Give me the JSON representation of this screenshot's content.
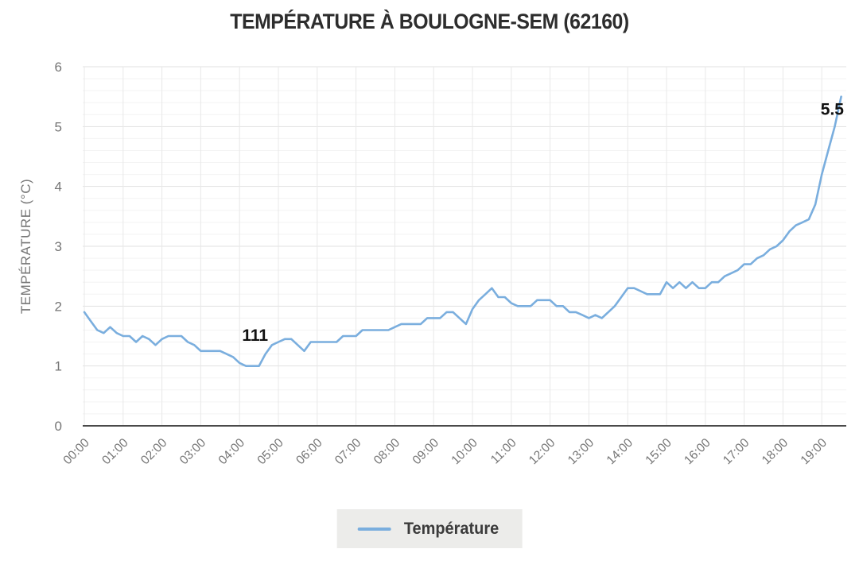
{
  "header": {
    "title": "TEMPÉRATURE À BOULOGNE-SEM (62160)"
  },
  "chart_data": {
    "type": "line",
    "title": "TEMPÉRATURE À BOULOGNE-SEM (62160)",
    "xlabel": "",
    "ylabel": "TEMPÉRATURE (°C)",
    "ylim": [
      0,
      6
    ],
    "grid": {
      "y_minor_step": 0.2,
      "y_major_step": 1,
      "x_step_hours": 1,
      "visible": true
    },
    "y_ticks": [
      "0",
      "1",
      "2",
      "3",
      "4",
      "5",
      "6"
    ],
    "x_ticks": [
      "00:00",
      "01:00",
      "02:00",
      "03:00",
      "04:00",
      "05:00",
      "06:00",
      "07:00",
      "08:00",
      "09:00",
      "10:00",
      "11:00",
      "12:00",
      "13:00",
      "14:00",
      "15:00",
      "16:00",
      "17:00",
      "18:00",
      "19:00"
    ],
    "interval_minutes": 10,
    "start_time": "00:00",
    "end_time": "19:30",
    "legend_position": "bottom",
    "legend": {
      "entries": [
        {
          "label": "Température",
          "color": "#7aaede"
        }
      ]
    },
    "series": [
      {
        "name": "Température",
        "color": "#7aaede",
        "values": [
          1.9,
          1.75,
          1.6,
          1.55,
          1.65,
          1.55,
          1.5,
          1.5,
          1.4,
          1.5,
          1.45,
          1.35,
          1.45,
          1.5,
          1.5,
          1.5,
          1.4,
          1.35,
          1.25,
          1.25,
          1.25,
          1.25,
          1.2,
          1.15,
          1.05,
          1.0,
          1.0,
          1.0,
          1.2,
          1.35,
          1.4,
          1.45,
          1.45,
          1.35,
          1.25,
          1.4,
          1.4,
          1.4,
          1.4,
          1.4,
          1.5,
          1.5,
          1.5,
          1.6,
          1.6,
          1.6,
          1.6,
          1.6,
          1.65,
          1.7,
          1.7,
          1.7,
          1.7,
          1.8,
          1.8,
          1.8,
          1.9,
          1.9,
          1.8,
          1.7,
          1.95,
          2.1,
          2.2,
          2.3,
          2.15,
          2.15,
          2.05,
          2.0,
          2.0,
          2.0,
          2.1,
          2.1,
          2.1,
          2.0,
          2.0,
          1.9,
          1.9,
          1.85,
          1.8,
          1.85,
          1.8,
          1.9,
          2.0,
          2.15,
          2.3,
          2.3,
          2.25,
          2.2,
          2.2,
          2.2,
          2.4,
          2.3,
          2.4,
          2.3,
          2.4,
          2.3,
          2.3,
          2.4,
          2.4,
          2.5,
          2.55,
          2.6,
          2.7,
          2.7,
          2.8,
          2.85,
          2.95,
          3.0,
          3.1,
          3.25,
          3.35,
          3.4,
          3.45,
          3.7,
          4.2,
          4.6,
          5.0,
          5.5
        ]
      }
    ],
    "annotations": [
      {
        "text": "111",
        "x_hours": 4.4,
        "y_value": 1.42
      },
      {
        "text": "5.5",
        "x_hours": 19.27,
        "y_value": 5.2
      }
    ],
    "colors": {
      "line": "#7aaede",
      "grid_minor": "#f3f3f3",
      "grid_major": "#e1e1e1",
      "grid_vertical": "#e8e8e8",
      "axis": "#4a4a4a",
      "tick_label": "#757575",
      "annotation": "#111111",
      "title": "#2d2d2d"
    }
  }
}
